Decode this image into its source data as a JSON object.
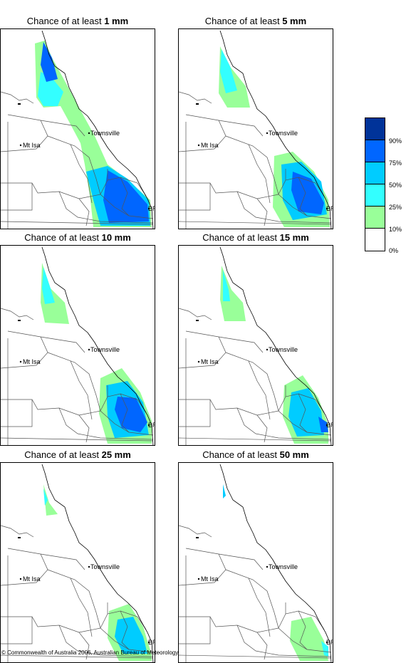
{
  "title_prefix": "Chance of at least",
  "panels": [
    {
      "amount": "1 mm",
      "intensity": 5
    },
    {
      "amount": "5 mm",
      "intensity": 4
    },
    {
      "amount": "10 mm",
      "intensity": 3
    },
    {
      "amount": "15 mm",
      "intensity": 2
    },
    {
      "amount": "25 mm",
      "intensity": 1
    },
    {
      "amount": "50 mm",
      "intensity": 0
    }
  ],
  "towns": {
    "townsville": "Townsville",
    "mt_isa": "Mt Isa",
    "brisbane": "BRIS"
  },
  "legend": {
    "labels": [
      "90%",
      "75%",
      "50%",
      "25%",
      "10%",
      "0%"
    ],
    "colors": [
      "#003399",
      "#0066ff",
      "#00ccff",
      "#33ffff",
      "#99ff99",
      "#ffffff"
    ]
  },
  "copyright": "© Commonwealth of Australia 2006, Australian Bureau of Meteorology"
}
